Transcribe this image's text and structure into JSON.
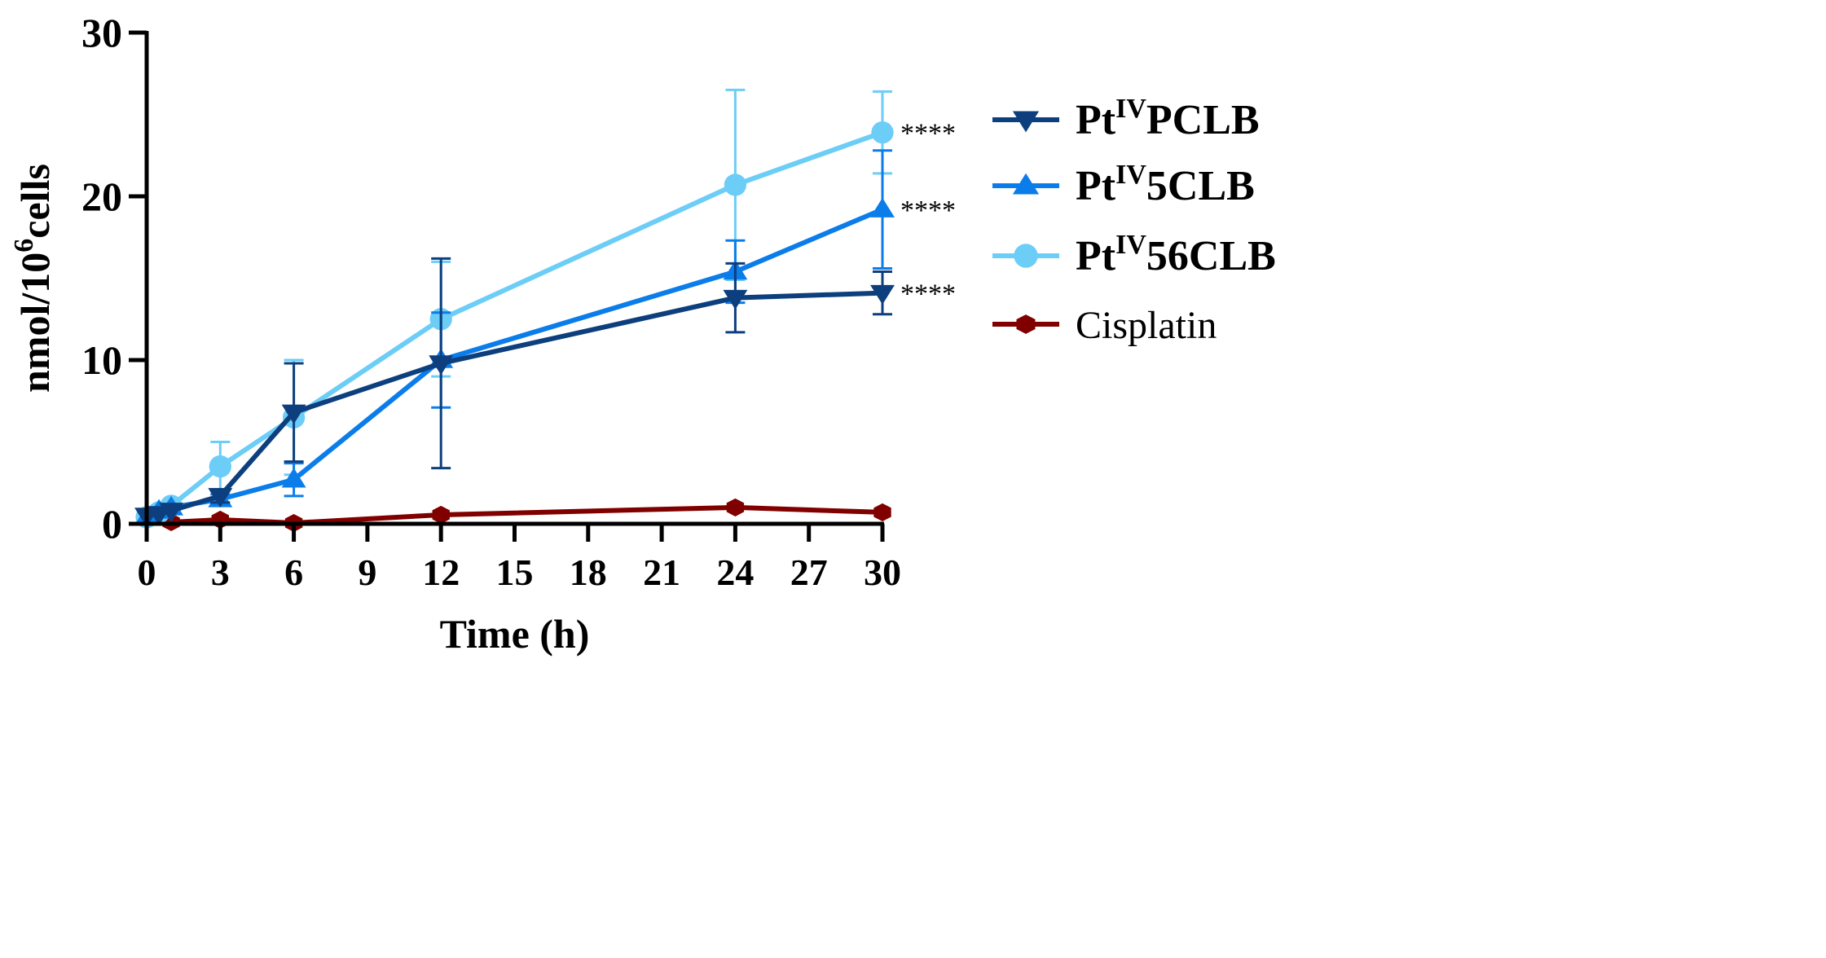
{
  "chart_data": {
    "type": "line",
    "xlabel": "Time (h)",
    "ylabel": "nmol/10⁶cells",
    "ylabel_parts": {
      "base": "nmol/10",
      "sup": "6",
      "rest": "cells"
    },
    "xlim": [
      0,
      30
    ],
    "ylim": [
      0,
      30
    ],
    "xticks": [
      0,
      3,
      6,
      9,
      12,
      15,
      18,
      21,
      24,
      27,
      30
    ],
    "yticks": [
      0,
      10,
      20,
      30
    ],
    "grid": false,
    "legend_position": "right",
    "series": [
      {
        "name": "PtIVPCLB",
        "label_parts": {
          "base": "Pt",
          "sup": "IV",
          "rest": "PCLB"
        },
        "marker": "triangle-down",
        "color": "#0d3f7e",
        "x": [
          0,
          0.5,
          1,
          3,
          6,
          12,
          24,
          30
        ],
        "y": [
          0.5,
          0.6,
          0.8,
          1.7,
          6.8,
          9.8,
          13.8,
          14.1
        ],
        "err": [
          0,
          0,
          0,
          0.4,
          3.0,
          6.4,
          2.1,
          1.3
        ],
        "significance": "****"
      },
      {
        "name": "PtIV5CLB",
        "label_parts": {
          "base": "Pt",
          "sup": "IV",
          "rest": "5CLB"
        },
        "marker": "triangle-up",
        "color": "#0b7dea",
        "x": [
          0,
          0.5,
          1,
          3,
          6,
          12,
          24,
          30
        ],
        "y": [
          0.4,
          0.8,
          1.0,
          1.5,
          2.7,
          10.0,
          15.4,
          19.2
        ],
        "err": [
          0,
          0,
          0,
          0.3,
          1.0,
          2.9,
          1.9,
          3.6
        ],
        "significance": "****"
      },
      {
        "name": "PtIV56CLB",
        "label_parts": {
          "base": "Pt",
          "sup": "IV",
          "rest": "56CLB"
        },
        "marker": "circle",
        "color": "#6ccdf7",
        "x": [
          0,
          0.5,
          1,
          3,
          6,
          12,
          24,
          30
        ],
        "y": [
          0.4,
          0.7,
          1.1,
          3.5,
          6.5,
          12.5,
          20.7,
          23.9
        ],
        "err": [
          0,
          0,
          0,
          1.5,
          3.5,
          3.5,
          5.8,
          2.5
        ],
        "significance": "****"
      },
      {
        "name": "Cisplatin",
        "label_parts": {
          "base": "Cisplatin",
          "sup": "",
          "rest": ""
        },
        "marker": "hexagon",
        "color": "#800000",
        "x": [
          1,
          3,
          6,
          12,
          24,
          30
        ],
        "y": [
          0.1,
          0.25,
          0.05,
          0.55,
          1.0,
          0.7
        ],
        "err": [
          0,
          0,
          0,
          0,
          0,
          0
        ],
        "significance": ""
      }
    ]
  }
}
